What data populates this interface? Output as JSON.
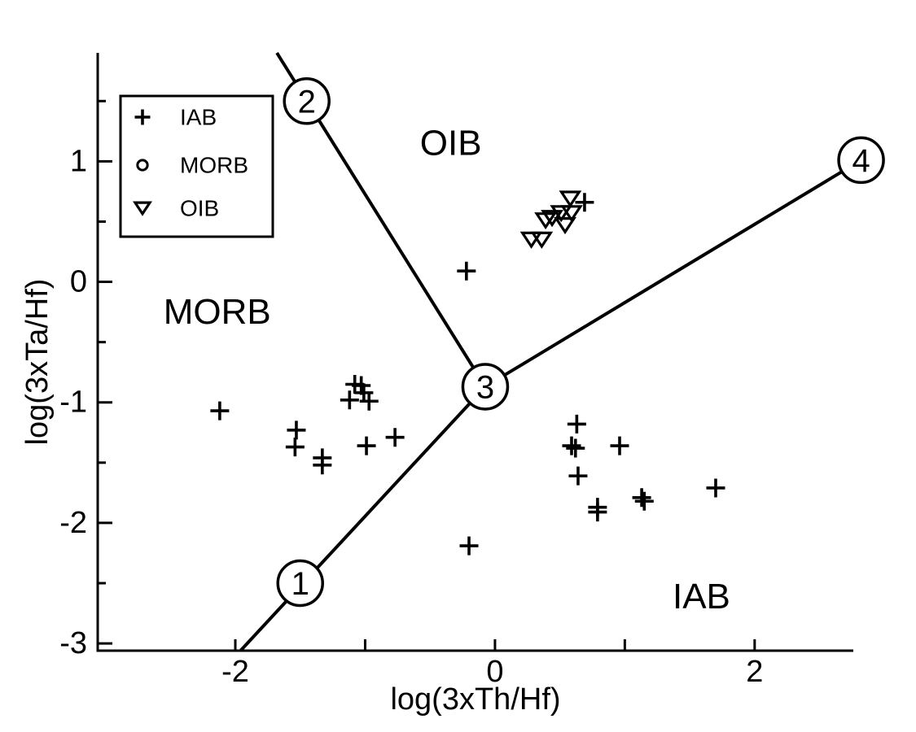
{
  "figure": {
    "background": "#ffffff",
    "ink": "#000000"
  },
  "chart_data": {
    "type": "scatter",
    "title": "",
    "xlabel": "log(3xTh/Hf)",
    "ylabel": "log(3xTa/Hf)",
    "xlim": [
      -3.06,
      2.76
    ],
    "ylim": [
      -3.06,
      1.9
    ],
    "grid": false,
    "x_ticks": [
      {
        "v": -2,
        "label": "-2"
      },
      {
        "v": -1,
        "label": ""
      },
      {
        "v": 0,
        "label": "0"
      },
      {
        "v": 1,
        "label": ""
      },
      {
        "v": 2,
        "label": "2"
      }
    ],
    "y_ticks": [
      {
        "v": 1.5,
        "label": ""
      },
      {
        "v": 1,
        "label": "1"
      },
      {
        "v": 0.5,
        "label": ""
      },
      {
        "v": 0,
        "label": "0"
      },
      {
        "v": -0.5,
        "label": ""
      },
      {
        "v": -1,
        "label": "-1"
      },
      {
        "v": -1.5,
        "label": ""
      },
      {
        "v": -2,
        "label": "-2"
      },
      {
        "v": -2.5,
        "label": ""
      },
      {
        "v": -3,
        "label": "-3"
      }
    ],
    "series": [
      {
        "name": "IAB",
        "marker": "plus",
        "points": [
          [
            -2.12,
            -1.07
          ],
          [
            -1.53,
            -1.23
          ],
          [
            -1.54,
            -1.37
          ],
          [
            -1.12,
            -0.98
          ],
          [
            -1.08,
            -0.85
          ],
          [
            -1.03,
            -0.86
          ],
          [
            -1.01,
            -0.92
          ],
          [
            -0.97,
            -0.99
          ],
          [
            -1.33,
            -1.46
          ],
          [
            -1.33,
            -1.52
          ],
          [
            -0.99,
            -1.36
          ],
          [
            -0.77,
            -1.29
          ],
          [
            -0.22,
            0.09
          ],
          [
            -0.2,
            -2.19
          ],
          [
            0.69,
            0.66
          ],
          [
            0.63,
            -1.18
          ],
          [
            0.59,
            -1.36
          ],
          [
            0.62,
            -1.38
          ],
          [
            0.96,
            -1.36
          ],
          [
            0.64,
            -1.61
          ],
          [
            0.79,
            -1.87
          ],
          [
            0.79,
            -1.91
          ],
          [
            1.13,
            -1.79
          ],
          [
            1.15,
            -1.82
          ],
          [
            1.7,
            -1.71
          ]
        ]
      },
      {
        "name": "MORB",
        "marker": "circle",
        "points": []
      },
      {
        "name": "OIB",
        "marker": "triangle-down",
        "points": [
          [
            0.58,
            0.69
          ],
          [
            0.59,
            0.57
          ],
          [
            0.51,
            0.57
          ],
          [
            0.44,
            0.53
          ],
          [
            0.39,
            0.51
          ],
          [
            0.54,
            0.47
          ],
          [
            0.28,
            0.35
          ],
          [
            0.36,
            0.35
          ]
        ]
      }
    ],
    "boundaries": [
      {
        "name": "boundary-2-3",
        "from": [
          -1.68,
          1.9
        ],
        "to": [
          -0.075,
          -0.87
        ]
      },
      {
        "name": "boundary-3-4",
        "from": [
          -0.075,
          -0.87
        ],
        "to": [
          2.82,
          1.01
        ]
      },
      {
        "name": "boundary-1-3",
        "from": [
          -1.96,
          -3.06
        ],
        "to": [
          -0.075,
          -0.87
        ]
      }
    ],
    "nodes": [
      {
        "label": "1",
        "x": -1.5,
        "y": -2.5
      },
      {
        "label": "2",
        "x": -1.45,
        "y": 1.5
      },
      {
        "label": "3",
        "x": -0.075,
        "y": -0.87
      },
      {
        "label": "4",
        "x": 2.82,
        "y": 1.01
      }
    ],
    "region_labels": [
      {
        "text": "OIB",
        "x": -0.34,
        "y": 1.15
      },
      {
        "text": "MORB",
        "x": -2.14,
        "y": -0.25
      },
      {
        "text": "IAB",
        "x": 1.59,
        "y": -2.61
      }
    ],
    "legend": {
      "position": "top-left",
      "items": [
        {
          "marker": "plus",
          "label": "IAB"
        },
        {
          "marker": "circle",
          "label": "MORB"
        },
        {
          "marker": "triangle-down",
          "label": "OIB"
        }
      ]
    }
  }
}
